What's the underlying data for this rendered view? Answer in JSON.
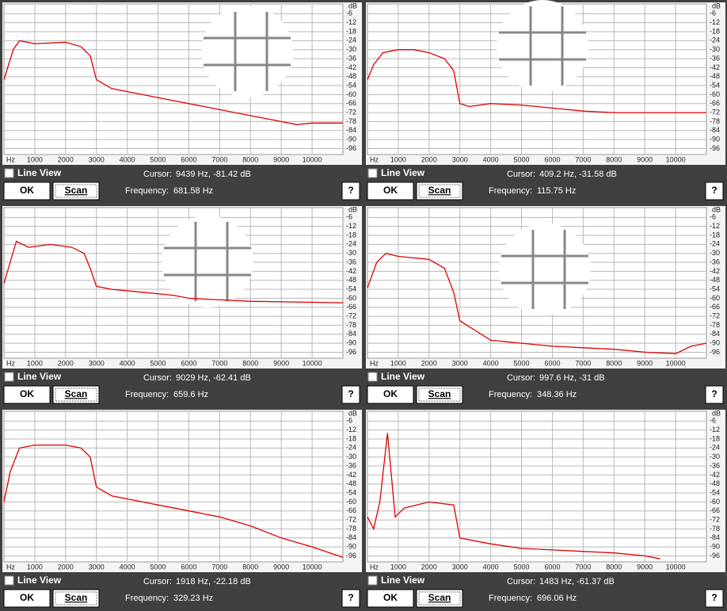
{
  "chart_data": [
    {
      "type": "line",
      "x_label": "Hz",
      "y_label": "dB",
      "color": "#e00000",
      "grid": true,
      "x": [
        0,
        300,
        500,
        1000,
        2000,
        2500,
        2800,
        3000,
        3500,
        4500,
        5500,
        6500,
        7500,
        8500,
        9500,
        10000,
        11000
      ],
      "values": [
        -50,
        -30,
        -24,
        -26,
        -25,
        -28,
        -34,
        -50,
        -56,
        -60,
        -64,
        -68,
        -72,
        -76,
        -80,
        -79,
        -79
      ],
      "xlim": [
        0,
        11000
      ],
      "ylim": [
        -100,
        0
      ],
      "xticks": [
        1000,
        2000,
        3000,
        4000,
        5000,
        6000,
        7000,
        8000,
        9000,
        10000
      ],
      "yticks": [
        -6,
        -12,
        -18,
        -24,
        -30,
        -36,
        -42,
        -48,
        -54,
        -60,
        -66,
        -72,
        -78,
        -84,
        -90,
        -96
      ]
    },
    {
      "type": "line",
      "x_label": "Hz",
      "y_label": "dB",
      "color": "#e00000",
      "grid": true,
      "x": [
        0,
        200,
        500,
        1000,
        1500,
        2000,
        2500,
        2800,
        3000,
        3300,
        4000,
        5000,
        6000,
        7000,
        8000,
        9000,
        11000
      ],
      "values": [
        -50,
        -40,
        -32,
        -30,
        -30,
        -32,
        -36,
        -44,
        -66,
        -68,
        -66,
        -67,
        -69,
        -71,
        -72,
        -72,
        -72
      ],
      "xlim": [
        0,
        11000
      ],
      "ylim": [
        -100,
        0
      ],
      "xticks": [
        1000,
        2000,
        3000,
        4000,
        5000,
        6000,
        7000,
        8000,
        9000,
        10000
      ],
      "yticks": [
        -6,
        -12,
        -18,
        -24,
        -30,
        -36,
        -42,
        -48,
        -54,
        -60,
        -66,
        -72,
        -78,
        -84,
        -90,
        -96
      ]
    },
    {
      "type": "line",
      "x_label": "Hz",
      "y_label": "dB",
      "color": "#e00000",
      "grid": true,
      "x": [
        0,
        400,
        800,
        1500,
        2200,
        2600,
        2800,
        3000,
        3500,
        4500,
        5500,
        6000,
        8000,
        11000
      ],
      "values": [
        -50,
        -22,
        -26,
        -24,
        -26,
        -30,
        -40,
        -52,
        -54,
        -56,
        -58,
        -60,
        -62,
        -63
      ],
      "xlim": [
        0,
        11000
      ],
      "ylim": [
        -100,
        0
      ],
      "xticks": [
        1000,
        2000,
        3000,
        4000,
        5000,
        6000,
        7000,
        8000,
        9000,
        10000
      ],
      "yticks": [
        -6,
        -12,
        -18,
        -24,
        -30,
        -36,
        -42,
        -48,
        -54,
        -60,
        -66,
        -72,
        -78,
        -84,
        -90,
        -96
      ]
    },
    {
      "type": "line",
      "x_label": "Hz",
      "y_label": "dB",
      "color": "#e00000",
      "grid": true,
      "x": [
        0,
        300,
        600,
        1000,
        2000,
        2500,
        2800,
        3000,
        4000,
        5000,
        6000,
        7000,
        8000,
        9000,
        10000,
        10500,
        11000
      ],
      "values": [
        -53,
        -36,
        -30,
        -32,
        -34,
        -40,
        -56,
        -75,
        -88,
        -90,
        -92,
        -93,
        -94,
        -96,
        -97,
        -92,
        -90
      ],
      "xlim": [
        0,
        11000
      ],
      "ylim": [
        -100,
        0
      ],
      "xticks": [
        1000,
        2000,
        3000,
        4000,
        5000,
        6000,
        7000,
        8000,
        9000,
        10000
      ],
      "yticks": [
        -6,
        -12,
        -18,
        -24,
        -30,
        -36,
        -42,
        -48,
        -54,
        -60,
        -66,
        -72,
        -78,
        -84,
        -90,
        -96
      ]
    },
    {
      "type": "line",
      "x_label": "Hz",
      "y_label": "dB",
      "color": "#e00000",
      "grid": true,
      "x": [
        0,
        200,
        500,
        1000,
        2000,
        2500,
        2800,
        3000,
        3500,
        5000,
        6000,
        7000,
        8000,
        9000,
        10000,
        11000
      ],
      "values": [
        -60,
        -40,
        -24,
        -22,
        -22,
        -24,
        -30,
        -50,
        -56,
        -62,
        -66,
        -70,
        -76,
        -84,
        -90,
        -97
      ],
      "xlim": [
        0,
        11000
      ],
      "ylim": [
        -100,
        0
      ],
      "xticks": [
        1000,
        2000,
        3000,
        4000,
        5000,
        6000,
        7000,
        8000,
        9000,
        10000
      ],
      "yticks": [
        -6,
        -12,
        -18,
        -24,
        -30,
        -36,
        -42,
        -48,
        -54,
        -60,
        -66,
        -72,
        -78,
        -84,
        -90,
        -96
      ]
    },
    {
      "type": "line",
      "x_label": "Hz",
      "y_label": "dB",
      "color": "#e00000",
      "grid": true,
      "x": [
        0,
        200,
        400,
        650,
        900,
        1200,
        2000,
        2800,
        3000,
        4000,
        5000,
        6000,
        7000,
        8000,
        9000,
        9500
      ],
      "values": [
        -70,
        -78,
        -60,
        -14,
        -70,
        -64,
        -60,
        -62,
        -84,
        -88,
        -91,
        -92,
        -93,
        -94,
        -96,
        -98
      ],
      "xlim": [
        0,
        11000
      ],
      "ylim": [
        -100,
        0
      ],
      "xticks": [
        1000,
        2000,
        3000,
        4000,
        5000,
        6000,
        7000,
        8000,
        9000,
        10000
      ],
      "yticks": [
        -6,
        -12,
        -18,
        -24,
        -30,
        -36,
        -42,
        -48,
        -54,
        -60,
        -66,
        -72,
        -78,
        -84,
        -90,
        -96
      ]
    }
  ],
  "controls": [
    {
      "line_view": "Line View",
      "cursor_label": "Cursor:",
      "cursor": "9439 Hz, -81.42 dB",
      "ok": "OK",
      "scan": "Scan",
      "frequency_label": "Frequency:",
      "frequency": "681.58 Hz",
      "help": "?"
    },
    {
      "line_view": "Line View",
      "cursor_label": "Cursor:",
      "cursor": "409.2 Hz, -31.58 dB",
      "ok": "OK",
      "scan": "Scan",
      "frequency_label": "Frequency:",
      "frequency": "115.75 Hz",
      "help": "?"
    },
    {
      "line_view": "Line View",
      "cursor_label": "Cursor:",
      "cursor": "9029 Hz, -62.41 dB",
      "ok": "OK",
      "scan": "Scan",
      "frequency_label": "Frequency:",
      "frequency": "659.6 Hz",
      "help": "?"
    },
    {
      "line_view": "Line View",
      "cursor_label": "Cursor:",
      "cursor": "997.6 Hz,    -31 dB",
      "ok": "OK",
      "scan": "Scan",
      "frequency_label": "Frequency:",
      "frequency": "348.36 Hz",
      "help": "?"
    },
    {
      "line_view": "Line View",
      "cursor_label": "Cursor:",
      "cursor": "1918 Hz, -22.18 dB",
      "ok": "OK",
      "scan": "Scan",
      "frequency_label": "Frequency:",
      "frequency": "329.23 Hz",
      "help": "?"
    },
    {
      "line_view": "Line View",
      "cursor_label": "Cursor:",
      "cursor": "1483 Hz, -61.37 dB",
      "ok": "OK",
      "scan": "Scan",
      "frequency_label": "Frequency:",
      "frequency": "696.06 Hz",
      "help": "?"
    }
  ]
}
